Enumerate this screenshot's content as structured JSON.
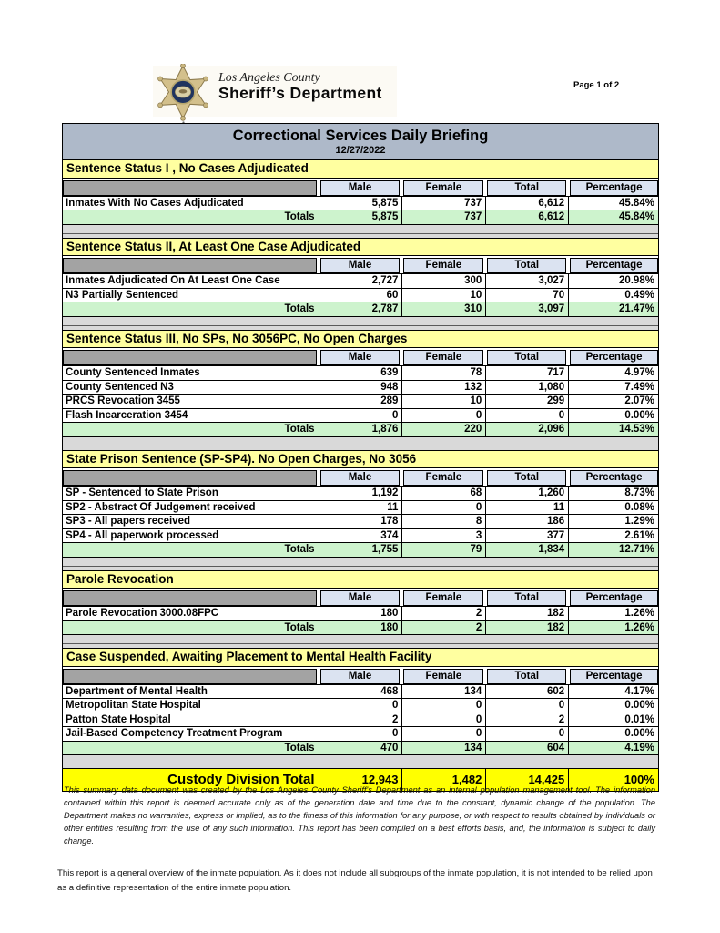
{
  "letterhead": {
    "county": "Los Angeles County",
    "department": "Sheriff’s Department",
    "page": "Page 1 of 2",
    "badge_icon": "sheriff-star-badge"
  },
  "report": {
    "title": "Correctional Services Daily Briefing",
    "date": "12/27/2022",
    "columns": [
      "Male",
      "Female",
      "Total",
      "Percentage"
    ],
    "totals_label": "Totals",
    "sections": [
      {
        "title": "Sentence Status I , No Cases Adjudicated",
        "rows": [
          {
            "label": "Inmates With No Cases Adjudicated",
            "values": [
              "5,875",
              "737",
              "6,612",
              "45.84%"
            ]
          }
        ],
        "totals": [
          "5,875",
          "737",
          "6,612",
          "45.84%"
        ]
      },
      {
        "title": "Sentence Status II, At Least One Case Adjudicated",
        "rows": [
          {
            "label": "Inmates Adjudicated On At Least One Case",
            "values": [
              "2,727",
              "300",
              "3,027",
              "20.98%"
            ]
          },
          {
            "label": "N3 Partially Sentenced",
            "values": [
              "60",
              "10",
              "70",
              "0.49%"
            ]
          }
        ],
        "totals": [
          "2,787",
          "310",
          "3,097",
          "21.47%"
        ]
      },
      {
        "title": "Sentence Status III, No SPs, No 3056PC, No Open Charges",
        "rows": [
          {
            "label": "County Sentenced Inmates",
            "values": [
              "639",
              "78",
              "717",
              "4.97%"
            ]
          },
          {
            "label": "County Sentenced N3",
            "values": [
              "948",
              "132",
              "1,080",
              "7.49%"
            ]
          },
          {
            "label": "PRCS Revocation 3455",
            "values": [
              "289",
              "10",
              "299",
              "2.07%"
            ]
          },
          {
            "label": "Flash Incarceration 3454",
            "values": [
              "0",
              "0",
              "0",
              "0.00%"
            ]
          }
        ],
        "totals": [
          "1,876",
          "220",
          "2,096",
          "14.53%"
        ]
      },
      {
        "title": "State Prison Sentence (SP-SP4). No Open Charges, No 3056",
        "rows": [
          {
            "label": "SP - Sentenced to State Prison",
            "values": [
              "1,192",
              "68",
              "1,260",
              "8.73%"
            ]
          },
          {
            "label": "SP2 - Abstract Of Judgement received",
            "values": [
              "11",
              "0",
              "11",
              "0.08%"
            ]
          },
          {
            "label": "SP3 - All papers received",
            "values": [
              "178",
              "8",
              "186",
              "1.29%"
            ]
          },
          {
            "label": "SP4 - All paperwork processed",
            "values": [
              "374",
              "3",
              "377",
              "2.61%"
            ]
          }
        ],
        "totals": [
          "1,755",
          "79",
          "1,834",
          "12.71%"
        ]
      },
      {
        "title": "Parole Revocation",
        "rows": [
          {
            "label": "Parole Revocation 3000.08FPC",
            "values": [
              "180",
              "2",
              "182",
              "1.26%"
            ]
          }
        ],
        "totals": [
          "180",
          "2",
          "182",
          "1.26%"
        ]
      },
      {
        "title": "Case Suspended, Awaiting Placement to Mental Health Facility",
        "rows": [
          {
            "label": "Department of Mental Health",
            "values": [
              "468",
              "134",
              "602",
              "4.17%"
            ]
          },
          {
            "label": "Metropolitan State Hospital",
            "values": [
              "0",
              "0",
              "0",
              "0.00%"
            ]
          },
          {
            "label": "Patton State Hospital",
            "values": [
              "2",
              "0",
              "2",
              "0.01%"
            ]
          },
          {
            "label": "Jail-Based Competency Treatment Program",
            "values": [
              "0",
              "0",
              "0",
              "0.00%"
            ]
          }
        ],
        "totals": [
          "470",
          "134",
          "604",
          "4.19%"
        ]
      }
    ],
    "grand_total": {
      "label": "Custody Division Total",
      "values": [
        "12,943",
        "1,482",
        "14,425",
        "100%"
      ]
    }
  },
  "footnotes": {
    "disclaimer": "This summary data document was created by the Los Angeles County Sheriff's Department as an internal population management tool.  The information contained within this report is deemed accurate only as of the generation date and time due to the constant, dynamic change of the population.  The Department makes no warranties, express or implied, as to the fitness of this information for any purpose, or with respect to results obtained by individuals or other entities resulting from the use of any such information.  This report has been compiled on a best efforts basis, and, the information is subject to daily change.",
    "overview": "This report is a general overview of the inmate population.  As it does not include all subgroups of the inmate population, it is not intended to be relied upon as a definitive representation of the entire inmate population."
  },
  "colors": {
    "title_bar": "#aeb9c9",
    "section_header": "#ffffa0",
    "column_header": "#dbe3f1",
    "column_header_blank": "#a3a3a3",
    "totals_row": "#cdf3cd",
    "grand_total_row": "#ffff00",
    "spacer": "#d9d9d9",
    "border": "#000000"
  }
}
